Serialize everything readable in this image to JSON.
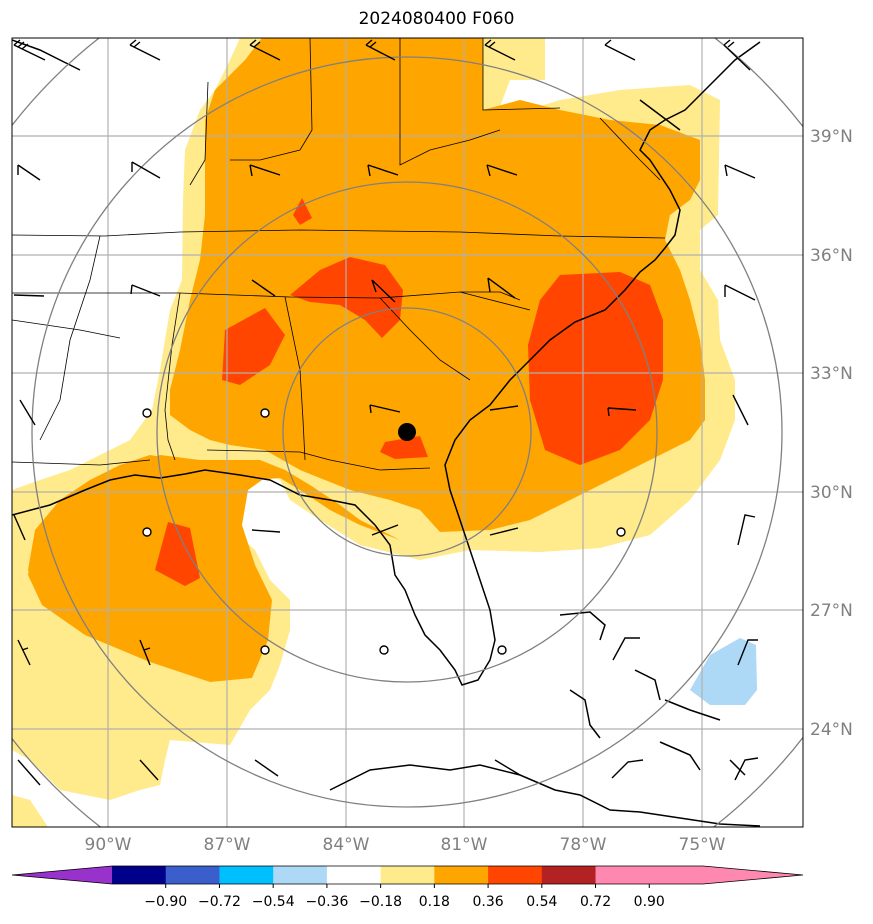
{
  "title": "2024080400 F060",
  "map": {
    "lat_labels": [
      "39°N",
      "36°N",
      "33°N",
      "30°N",
      "27°N",
      "24°N"
    ],
    "lon_labels": [
      "90°W",
      "87°W",
      "84°W",
      "81°W",
      "78°W",
      "75°W"
    ],
    "fill_colors": {
      "light_yellow": "#ffea8c",
      "orange": "#ffa500",
      "red_orange": "#ff4500",
      "light_blue": "#add8f6"
    },
    "marker": "center-point"
  },
  "colorbar": {
    "ticks": [
      "−0.90",
      "−0.72",
      "−0.54",
      "−0.36",
      "−0.18",
      "0.18",
      "0.36",
      "0.54",
      "0.72",
      "0.90"
    ],
    "colors": [
      "#9932cc",
      "#00008b",
      "#3a5fcd",
      "#00bfff",
      "#add8f6",
      "#ffffff",
      "#ffea8c",
      "#ffa500",
      "#ff4500",
      "#b22222",
      "#ff88b0",
      "#ff88b0"
    ]
  }
}
